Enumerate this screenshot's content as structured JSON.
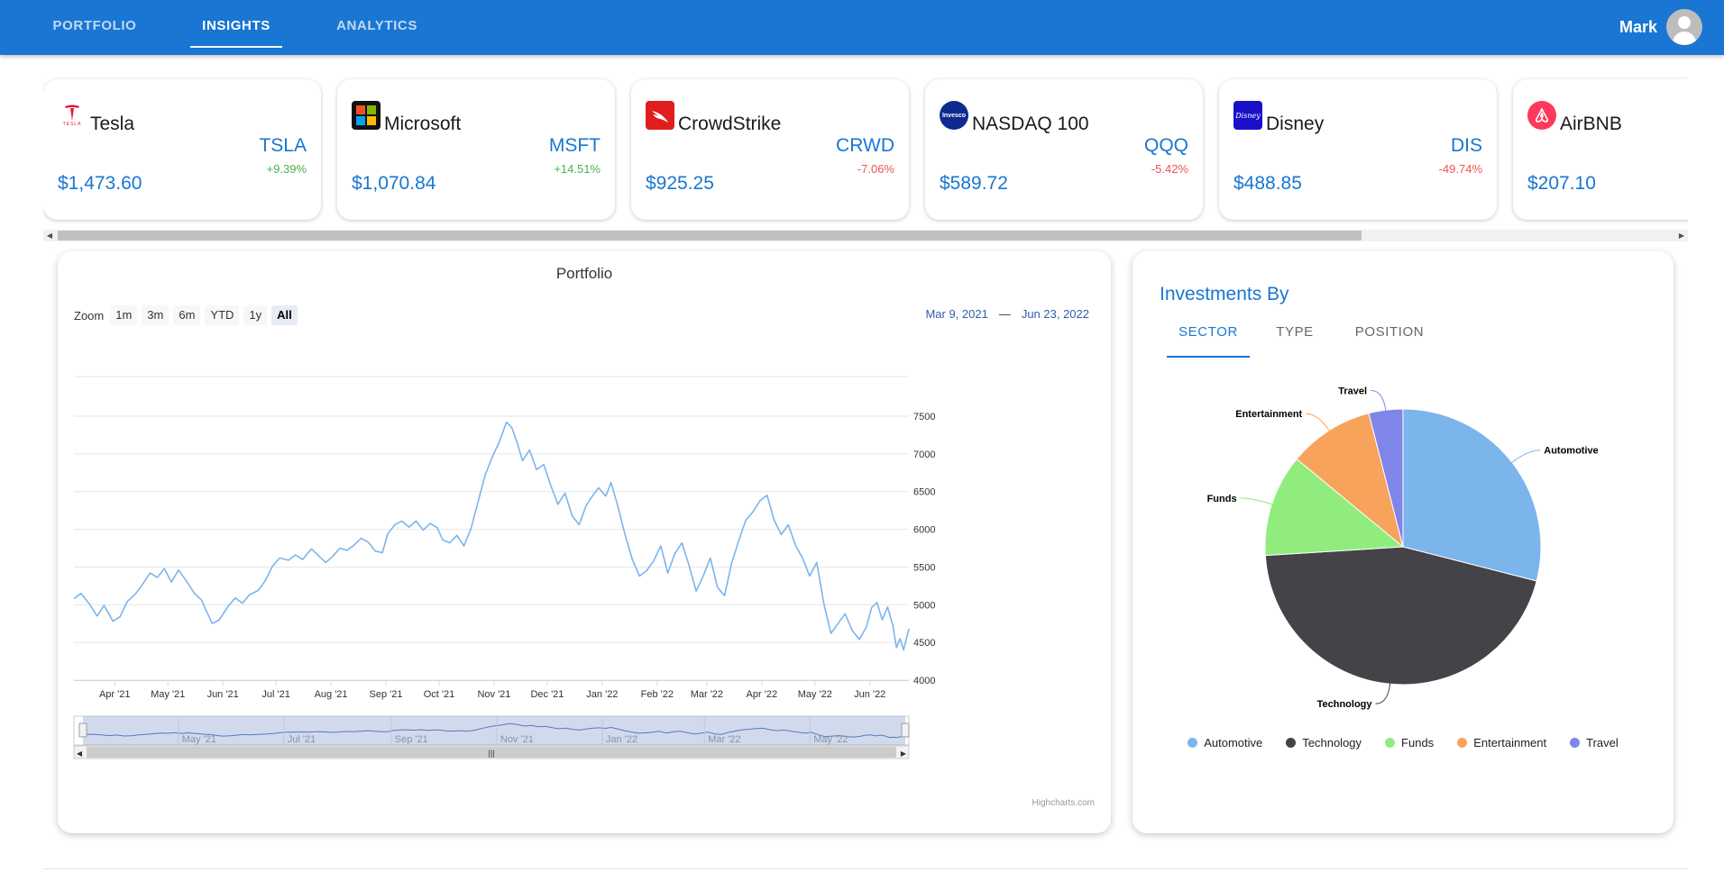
{
  "nav": {
    "tabs": [
      {
        "label": "PORTFOLIO"
      },
      {
        "label": "INSIGHTS"
      },
      {
        "label": "ANALYTICS"
      }
    ],
    "active_tab": "INSIGHTS",
    "user_name": "Mark",
    "avatar_icon": "account-circle-icon"
  },
  "stocks": [
    {
      "name": "Tesla",
      "ticker": "TSLA",
      "change": "+9.39%",
      "direction": "up",
      "price": "$1,473.60",
      "logo": "tesla-logo-icon",
      "logo_text": "TESLA"
    },
    {
      "name": "Microsoft",
      "ticker": "MSFT",
      "change": "+14.51%",
      "direction": "up",
      "price": "$1,070.84",
      "logo": "microsoft-logo-icon"
    },
    {
      "name": "CrowdStrike",
      "ticker": "CRWD",
      "change": "-7.06%",
      "direction": "down",
      "price": "$925.25",
      "logo": "crowdstrike-logo-icon"
    },
    {
      "name": "NASDAQ 100",
      "ticker": "QQQ",
      "change": "-5.42%",
      "direction": "down",
      "price": "$589.72",
      "logo": "invesco-logo-icon",
      "logo_text": "Invesco"
    },
    {
      "name": "Disney",
      "ticker": "DIS",
      "change": "-49.74%",
      "direction": "down",
      "price": "$488.85",
      "logo": "disney-logo-icon",
      "logo_text": "Disney"
    },
    {
      "name": "AirBNB",
      "ticker": "",
      "change": "",
      "direction": "",
      "price": "$207.10",
      "logo": "airbnb-logo-icon"
    }
  ],
  "colors": {
    "primary": "#1976d2",
    "positive": "#4caf50",
    "negative": "#ef5350",
    "line": "#7cb5ec",
    "navigator_mask": "rgba(102,133,194,0.3)"
  },
  "portfolio_chart": {
    "title": "Portfolio",
    "zoom_label": "Zoom",
    "zoom_buttons": [
      "1m",
      "3m",
      "6m",
      "YTD",
      "1y",
      "All"
    ],
    "active_zoom": "All",
    "range_from": "Mar 9, 2021",
    "range_sep": "—",
    "range_to": "Jun 23, 2022",
    "credits": "Highcharts.com",
    "navigator_labels": [
      "May '21",
      "Jul '21",
      "Sep '21",
      "Nov '21",
      "Jan '22",
      "Mar '22",
      "May '22"
    ]
  },
  "investments": {
    "title": "Investments By",
    "tabs": [
      "SECTOR",
      "TYPE",
      "POSITION"
    ],
    "active_tab": "SECTOR"
  },
  "chart_data": [
    {
      "type": "line",
      "title": "Portfolio",
      "xlabel": "",
      "ylabel": "",
      "x_range": [
        "2021-03-09",
        "2022-06-23"
      ],
      "ylim": [
        4000,
        7500
      ],
      "y_ticks": [
        4000,
        4500,
        5000,
        5500,
        6000,
        6500,
        7000,
        7500
      ],
      "x_ticks": [
        {
          "label": "Apr '21",
          "date": "2021-04-01"
        },
        {
          "label": "May '21",
          "date": "2021-05-01"
        },
        {
          "label": "Jun '21",
          "date": "2021-06-01"
        },
        {
          "label": "Jul '21",
          "date": "2021-07-01"
        },
        {
          "label": "Aug '21",
          "date": "2021-08-01"
        },
        {
          "label": "Sep '21",
          "date": "2021-09-01"
        },
        {
          "label": "Oct '21",
          "date": "2021-10-01"
        },
        {
          "label": "Nov '21",
          "date": "2021-11-01"
        },
        {
          "label": "Dec '21",
          "date": "2021-12-01"
        },
        {
          "label": "Jan '22",
          "date": "2022-01-01"
        },
        {
          "label": "Feb '22",
          "date": "2022-02-01"
        },
        {
          "label": "Mar '22",
          "date": "2022-03-01"
        },
        {
          "label": "Apr '22",
          "date": "2022-04-01"
        },
        {
          "label": "May '22",
          "date": "2022-05-01"
        },
        {
          "label": "Jun '22",
          "date": "2022-06-01"
        }
      ],
      "grid": true,
      "series": [
        {
          "color": "#7cb5ec",
          "points": [
            [
              "2021-03-09",
              5080
            ],
            [
              "2021-03-13",
              5150
            ],
            [
              "2021-03-18",
              5000
            ],
            [
              "2021-03-22",
              4850
            ],
            [
              "2021-03-26",
              4990
            ],
            [
              "2021-03-31",
              4780
            ],
            [
              "2021-04-04",
              4840
            ],
            [
              "2021-04-08",
              5040
            ],
            [
              "2021-04-13",
              5150
            ],
            [
              "2021-04-17",
              5280
            ],
            [
              "2021-04-21",
              5420
            ],
            [
              "2021-04-25",
              5360
            ],
            [
              "2021-04-29",
              5480
            ],
            [
              "2021-05-03",
              5300
            ],
            [
              "2021-05-07",
              5460
            ],
            [
              "2021-05-11",
              5330
            ],
            [
              "2021-05-16",
              5150
            ],
            [
              "2021-05-20",
              5060
            ],
            [
              "2021-05-23",
              4900
            ],
            [
              "2021-05-26",
              4750
            ],
            [
              "2021-05-30",
              4800
            ],
            [
              "2021-06-04",
              4980
            ],
            [
              "2021-06-08",
              5090
            ],
            [
              "2021-06-12",
              5020
            ],
            [
              "2021-06-16",
              5130
            ],
            [
              "2021-06-21",
              5190
            ],
            [
              "2021-06-25",
              5320
            ],
            [
              "2021-06-29",
              5510
            ],
            [
              "2021-07-03",
              5620
            ],
            [
              "2021-07-08",
              5590
            ],
            [
              "2021-07-12",
              5660
            ],
            [
              "2021-07-16",
              5600
            ],
            [
              "2021-07-21",
              5740
            ],
            [
              "2021-07-25",
              5650
            ],
            [
              "2021-07-29",
              5560
            ],
            [
              "2021-08-02",
              5640
            ],
            [
              "2021-08-06",
              5750
            ],
            [
              "2021-08-10",
              5720
            ],
            [
              "2021-08-14",
              5790
            ],
            [
              "2021-08-18",
              5880
            ],
            [
              "2021-08-22",
              5830
            ],
            [
              "2021-08-26",
              5710
            ],
            [
              "2021-08-30",
              5690
            ],
            [
              "2021-09-02",
              5940
            ],
            [
              "2021-09-06",
              6060
            ],
            [
              "2021-09-10",
              6110
            ],
            [
              "2021-09-14",
              6030
            ],
            [
              "2021-09-18",
              6110
            ],
            [
              "2021-09-22",
              5990
            ],
            [
              "2021-09-26",
              6080
            ],
            [
              "2021-09-30",
              6020
            ],
            [
              "2021-10-03",
              5860
            ],
            [
              "2021-10-07",
              5820
            ],
            [
              "2021-10-11",
              5920
            ],
            [
              "2021-10-15",
              5780
            ],
            [
              "2021-10-19",
              6010
            ],
            [
              "2021-10-23",
              6370
            ],
            [
              "2021-10-27",
              6720
            ],
            [
              "2021-10-31",
              6960
            ],
            [
              "2021-11-04",
              7160
            ],
            [
              "2021-11-08",
              7420
            ],
            [
              "2021-11-11",
              7350
            ],
            [
              "2021-11-14",
              7150
            ],
            [
              "2021-11-17",
              6910
            ],
            [
              "2021-11-21",
              7050
            ],
            [
              "2021-11-25",
              6790
            ],
            [
              "2021-11-29",
              6860
            ],
            [
              "2021-12-03",
              6580
            ],
            [
              "2021-12-07",
              6330
            ],
            [
              "2021-12-11",
              6480
            ],
            [
              "2021-12-15",
              6180
            ],
            [
              "2021-12-19",
              6060
            ],
            [
              "2021-12-23",
              6320
            ],
            [
              "2021-12-27",
              6460
            ],
            [
              "2021-12-30",
              6550
            ],
            [
              "2022-01-03",
              6440
            ],
            [
              "2022-01-06",
              6620
            ],
            [
              "2022-01-10",
              6290
            ],
            [
              "2022-01-14",
              5920
            ],
            [
              "2022-01-18",
              5600
            ],
            [
              "2022-01-22",
              5380
            ],
            [
              "2022-01-26",
              5450
            ],
            [
              "2022-01-30",
              5580
            ],
            [
              "2022-02-03",
              5780
            ],
            [
              "2022-02-07",
              5420
            ],
            [
              "2022-02-11",
              5680
            ],
            [
              "2022-02-15",
              5820
            ],
            [
              "2022-02-19",
              5520
            ],
            [
              "2022-02-23",
              5180
            ],
            [
              "2022-02-27",
              5380
            ],
            [
              "2022-03-03",
              5620
            ],
            [
              "2022-03-07",
              5230
            ],
            [
              "2022-03-11",
              5120
            ],
            [
              "2022-03-15",
              5550
            ],
            [
              "2022-03-19",
              5850
            ],
            [
              "2022-03-23",
              6120
            ],
            [
              "2022-03-27",
              6230
            ],
            [
              "2022-03-31",
              6380
            ],
            [
              "2022-04-04",
              6450
            ],
            [
              "2022-04-08",
              6120
            ],
            [
              "2022-04-12",
              5930
            ],
            [
              "2022-04-16",
              6060
            ],
            [
              "2022-04-20",
              5790
            ],
            [
              "2022-04-24",
              5620
            ],
            [
              "2022-04-28",
              5380
            ],
            [
              "2022-05-02",
              5560
            ],
            [
              "2022-05-06",
              5020
            ],
            [
              "2022-05-10",
              4620
            ],
            [
              "2022-05-14",
              4750
            ],
            [
              "2022-05-18",
              4880
            ],
            [
              "2022-05-22",
              4660
            ],
            [
              "2022-05-26",
              4540
            ],
            [
              "2022-05-30",
              4700
            ],
            [
              "2022-06-02",
              4960
            ],
            [
              "2022-06-05",
              5030
            ],
            [
              "2022-06-08",
              4800
            ],
            [
              "2022-06-11",
              4970
            ],
            [
              "2022-06-14",
              4720
            ],
            [
              "2022-06-16",
              4430
            ],
            [
              "2022-06-18",
              4550
            ],
            [
              "2022-06-20",
              4400
            ],
            [
              "2022-06-23",
              4680
            ]
          ]
        }
      ]
    },
    {
      "type": "pie",
      "title": "",
      "slices": [
        {
          "label": "Automotive",
          "value": 29,
          "color": "#7cb5ec"
        },
        {
          "label": "Technology",
          "value": 45,
          "color": "#434348"
        },
        {
          "label": "Funds",
          "value": 12,
          "color": "#90ed7d"
        },
        {
          "label": "Entertainment",
          "value": 10,
          "color": "#f7a35c"
        },
        {
          "label": "Travel",
          "value": 4,
          "color": "#8085e9"
        }
      ],
      "legend": "bottom"
    }
  ]
}
